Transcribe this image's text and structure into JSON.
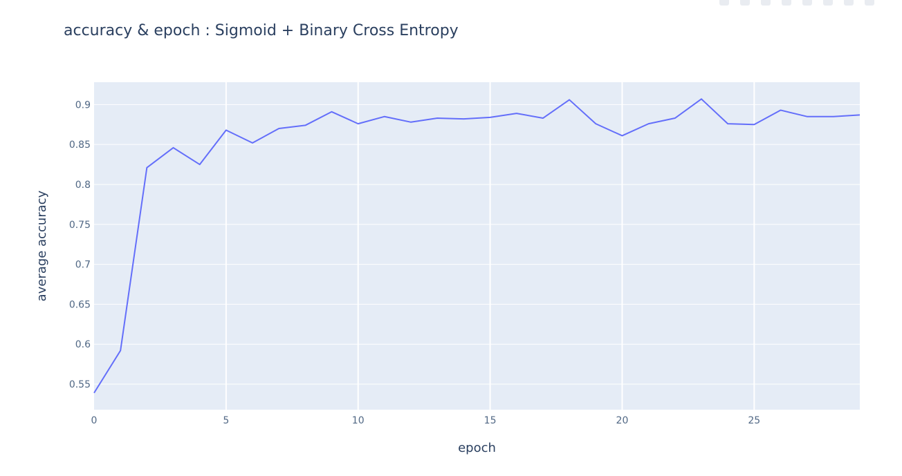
{
  "chart_data": {
    "type": "line",
    "title": "accuracy & epoch : Sigmoid + Binary Cross Entropy",
    "xlabel": "epoch",
    "ylabel": "average accuracy",
    "xlim": [
      0,
      29
    ],
    "ylim": [
      0.518,
      0.928
    ],
    "xticks": [
      0,
      5,
      10,
      15,
      20,
      25
    ],
    "yticks": [
      0.55,
      0.6,
      0.65,
      0.7,
      0.75,
      0.8,
      0.85,
      0.9
    ],
    "grid": true,
    "line_color": "#636efa",
    "plot_bg": "#e5ecf6",
    "series": [
      {
        "x": [
          0,
          1,
          2,
          3,
          4,
          5,
          6,
          7,
          8,
          9,
          10,
          11,
          12,
          13,
          14,
          15,
          16,
          17,
          18,
          19,
          20,
          21,
          22,
          23,
          24,
          25,
          26,
          27,
          28,
          29
        ],
        "y": [
          0.539,
          0.592,
          0.821,
          0.846,
          0.825,
          0.868,
          0.852,
          0.87,
          0.874,
          0.891,
          0.876,
          0.885,
          0.878,
          0.883,
          0.882,
          0.884,
          0.889,
          0.883,
          0.906,
          0.876,
          0.861,
          0.876,
          0.883,
          0.907,
          0.876,
          0.875,
          0.893,
          0.885,
          0.885,
          0.887
        ]
      }
    ]
  }
}
